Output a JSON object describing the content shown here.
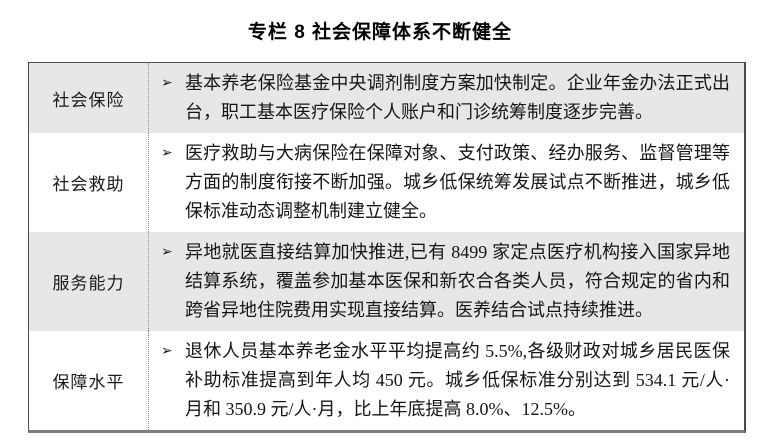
{
  "title": "专栏 8 社会保障体系不断健全",
  "bullet_char": "➢",
  "rows": [
    {
      "label": "社会保险",
      "content": "基本养老保险基金中央调剂制度方案加快制定。企业年金办法正式出台，职工基本医疗保险个人账户和门诊统筹制度逐步完善。"
    },
    {
      "label": "社会救助",
      "content": "医疗救助与大病保险在保障对象、支付政策、经办服务、监督管理等方面的制度衔接不断加强。城乡低保统筹发展试点不断推进，城乡低保标准动态调整机制建立健全。"
    },
    {
      "label": "服务能力",
      "content": "异地就医直接结算加快推进,已有 8499 家定点医疗机构接入国家异地结算系统，覆盖参加基本医保和新农合各类人员，符合规定的省内和跨省异地住院费用实现直接结算。医养结合试点持续推进。"
    },
    {
      "label": "保障水平",
      "content": "退休人员基本养老金水平平均提高约 5.5%,各级财政对城乡居民医保补助标准提高到年人均 450 元。城乡低保标准分别达到 534.1 元/人·月和 350.9 元/人·月，比上年底提高 8.0%、12.5%。"
    }
  ],
  "colors": {
    "shaded_row_background": "#e7e7e7",
    "plain_row_background": "#ffffff",
    "border_dark": "#4a4a4a",
    "border_shadow": "#7e7e7e",
    "divider_dotted": "#8a8a8a",
    "text": "#151515"
  }
}
